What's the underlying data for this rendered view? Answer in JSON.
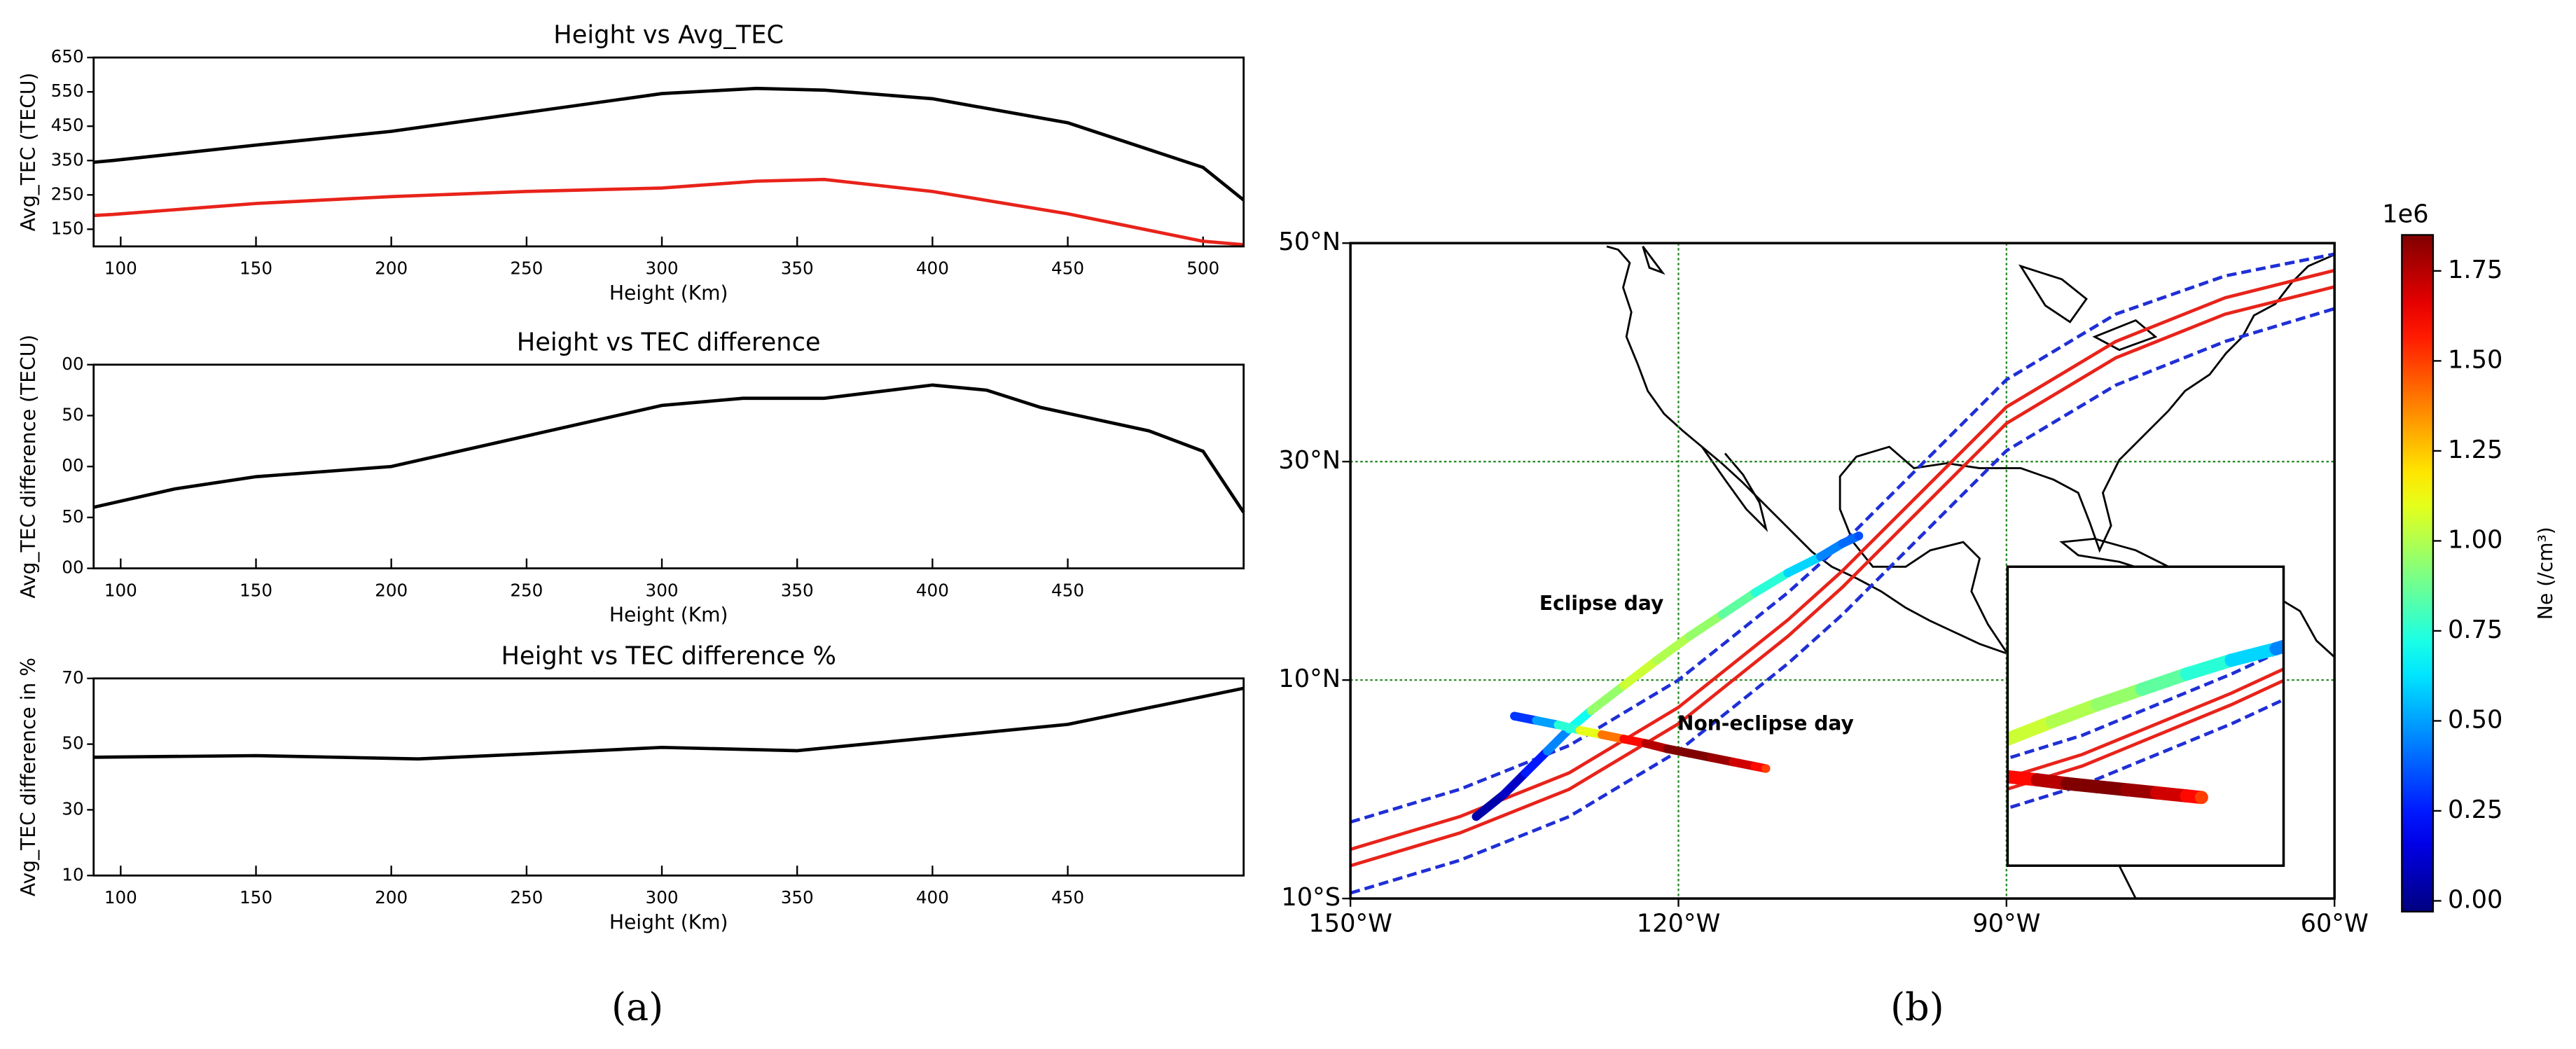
{
  "chart_data": [
    {
      "type": "line",
      "title": "Height vs Avg_TEC",
      "xlabel": "Height (Km)",
      "ylabel": "Avg_TEC (TECU)",
      "x": [
        90,
        97,
        150,
        200,
        250,
        300,
        335,
        360,
        400,
        450,
        500,
        515
      ],
      "series": [
        {
          "color": "#000000",
          "values": [
            345,
            350,
            395,
            435,
            490,
            545,
            560,
            555,
            530,
            460,
            330,
            235
          ]
        },
        {
          "color": "#e8231a",
          "values": [
            190,
            193,
            225,
            245,
            260,
            270,
            290,
            295,
            260,
            195,
            115,
            105
          ]
        }
      ],
      "xlim": [
        90,
        515
      ],
      "xticks": [
        100,
        150,
        200,
        250,
        300,
        350,
        400,
        450,
        500
      ],
      "ylim": [
        100,
        650
      ],
      "yticks": [
        150,
        250,
        350,
        450,
        550,
        650
      ]
    },
    {
      "type": "line",
      "title": "Height vs TEC difference",
      "xlabel": "Height (Km)",
      "ylabel": "Avg_TEC difference (TECU)",
      "x": [
        90,
        120,
        150,
        200,
        250,
        300,
        330,
        360,
        400,
        420,
        440,
        480,
        500,
        515
      ],
      "series": [
        {
          "color": "#000000",
          "values": [
            60,
            78,
            90,
            100,
            130,
            160,
            167,
            167,
            180,
            175,
            158,
            135,
            115,
            55
          ]
        }
      ],
      "xlim": [
        90,
        515
      ],
      "xticks": [
        100,
        150,
        200,
        250,
        300,
        350,
        400,
        450
      ],
      "ylim": [
        0,
        200
      ],
      "yticks": [
        {
          "value": 0,
          "label": "00"
        },
        50,
        {
          "value": 100,
          "label": "00"
        },
        {
          "value": 150,
          "label": "50"
        },
        {
          "value": 200,
          "label": "00"
        }
      ]
    },
    {
      "type": "line",
      "title": "Height vs TEC difference %",
      "xlabel": "Height (Km)",
      "ylabel": "Avg_TEC difference in %",
      "x": [
        90,
        150,
        210,
        250,
        300,
        350,
        400,
        450,
        515
      ],
      "series": [
        {
          "color": "#000000",
          "values": [
            46,
            46.5,
            45.5,
            47,
            49,
            48,
            52,
            56,
            67
          ]
        }
      ],
      "xlim": [
        90,
        515
      ],
      "xticks": [
        100,
        150,
        200,
        250,
        300,
        350,
        400,
        450
      ],
      "ylim": [
        10,
        70
      ],
      "yticks": [
        10,
        30,
        50,
        70
      ]
    },
    {
      "type": "map",
      "xlim": [
        -150,
        -60
      ],
      "xticks": [
        {
          "value": -150,
          "label": "150°W"
        },
        {
          "value": -120,
          "label": "120°W"
        },
        {
          "value": -90,
          "label": "90°W"
        },
        {
          "value": -60,
          "label": "60°W"
        }
      ],
      "ylim": [
        -10,
        50
      ],
      "yticks": [
        {
          "value": -10,
          "label": "10°S"
        },
        {
          "value": 10,
          "label": "10°N"
        },
        {
          "value": 30,
          "label": "30°N"
        },
        {
          "value": 50,
          "label": "50°N"
        }
      ],
      "grid": true,
      "grid_color": "#2a8a2a",
      "lines": [
        {
          "color": "#1f2fd6",
          "dashed": true,
          "x": [
            -150,
            -140,
            -130,
            -120,
            -110,
            -105,
            -100,
            -95,
            -90,
            -80,
            -70,
            -60
          ],
          "y": [
            -3,
            0,
            4,
            10,
            18,
            22.5,
            27.5,
            32.5,
            37.5,
            43.5,
            47,
            49
          ]
        },
        {
          "color": "#e8231a",
          "dashed": false,
          "x": [
            -150,
            -140,
            -130,
            -120,
            -110,
            -105,
            -100,
            -95,
            -90,
            -80,
            -70,
            -60
          ],
          "y": [
            -5.5,
            -2.5,
            1.5,
            7.5,
            15.5,
            20,
            25,
            30,
            35,
            41,
            45,
            47.5
          ]
        },
        {
          "color": "#e8231a",
          "dashed": false,
          "x": [
            -150,
            -140,
            -130,
            -120,
            -110,
            -105,
            -100,
            -95,
            -90,
            -80,
            -70,
            -60
          ],
          "y": [
            -7,
            -4,
            0,
            6,
            14,
            18.5,
            23.5,
            28.5,
            33.5,
            39.5,
            43.5,
            46
          ]
        },
        {
          "color": "#1f2fd6",
          "dashed": true,
          "x": [
            -150,
            -140,
            -130,
            -120,
            -110,
            -105,
            -100,
            -95,
            -90,
            -80,
            -70,
            -60
          ],
          "y": [
            -9.5,
            -6.5,
            -2.5,
            3.5,
            11.5,
            16,
            21,
            26,
            31,
            37,
            41,
            44
          ]
        }
      ],
      "tracks": [
        {
          "name": "Eclipse day",
          "x": [
            -138.5,
            -136,
            -134,
            -132,
            -130,
            -128,
            -125,
            -122,
            -119,
            -116,
            -113,
            -110,
            -107,
            -105,
            -103.5
          ],
          "y": [
            -2.5,
            -0.5,
            1.5,
            3.5,
            5.5,
            7.2,
            9.5,
            11.8,
            14,
            16,
            18,
            19.8,
            21.3,
            22.5,
            23.2
          ],
          "values": [
            0.05,
            0.1,
            0.25,
            0.45,
            0.7,
            0.95,
            1.05,
            1.0,
            0.95,
            0.85,
            0.75,
            0.6,
            0.45,
            0.4,
            0.35
          ]
        },
        {
          "name": "Non-eclipse day",
          "x": [
            -135,
            -133,
            -131,
            -129,
            -127,
            -125,
            -123,
            -121,
            -119,
            -117,
            -115,
            -113,
            -112
          ],
          "y": [
            6.7,
            6.3,
            5.9,
            5.4,
            5.0,
            4.6,
            4.2,
            3.7,
            3.3,
            2.9,
            2.5,
            2.1,
            1.9
          ],
          "values": [
            0.3,
            0.5,
            0.75,
            1.1,
            1.4,
            1.6,
            1.75,
            1.85,
            1.85,
            1.8,
            1.7,
            1.6,
            1.5
          ]
        }
      ],
      "inset": {
        "xlim": [
          -125,
          -106.5
        ],
        "ylim": [
          -7,
          32
        ]
      },
      "colorbar": {
        "label": "Ne (/cm³)",
        "offset_label": "1e6",
        "colormap": "jet",
        "clim": [
          -0.03,
          1.85
        ],
        "ticks": [
          {
            "value": 0,
            "label": "0.00"
          },
          0.25,
          {
            "value": 0.5,
            "label": "0.50"
          },
          0.75,
          {
            "value": 1,
            "label": "1.00"
          },
          1.25,
          {
            "value": 1.5,
            "label": "1.50"
          },
          1.75
        ]
      }
    }
  ],
  "captions": [
    "(a)",
    "(b)"
  ]
}
